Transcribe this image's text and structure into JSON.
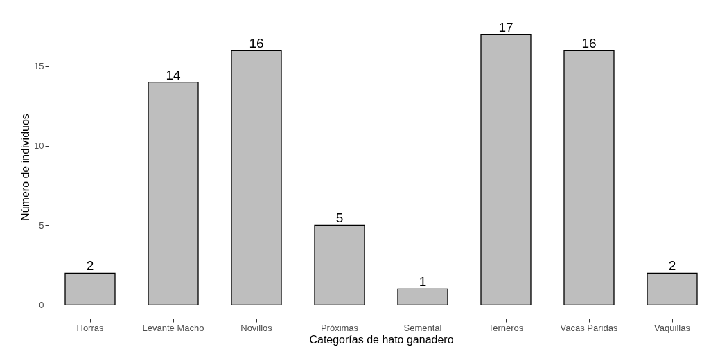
{
  "chart_data": {
    "type": "bar",
    "xlabel": "Categorías de hato ganadero",
    "ylabel": "Número de individuos",
    "categories": [
      "Horras",
      "Levante Macho",
      "Novillos",
      "Próximas",
      "Semental",
      "Terneros",
      "Vacas Paridas",
      "Vaquillas"
    ],
    "values": [
      2,
      14,
      16,
      5,
      1,
      17,
      16,
      2
    ],
    "color": "#bebebe",
    "ylim": [
      -0.85,
      18.2
    ],
    "yticks": [
      0,
      5,
      10,
      15
    ],
    "grid": false,
    "data_labels": true
  }
}
